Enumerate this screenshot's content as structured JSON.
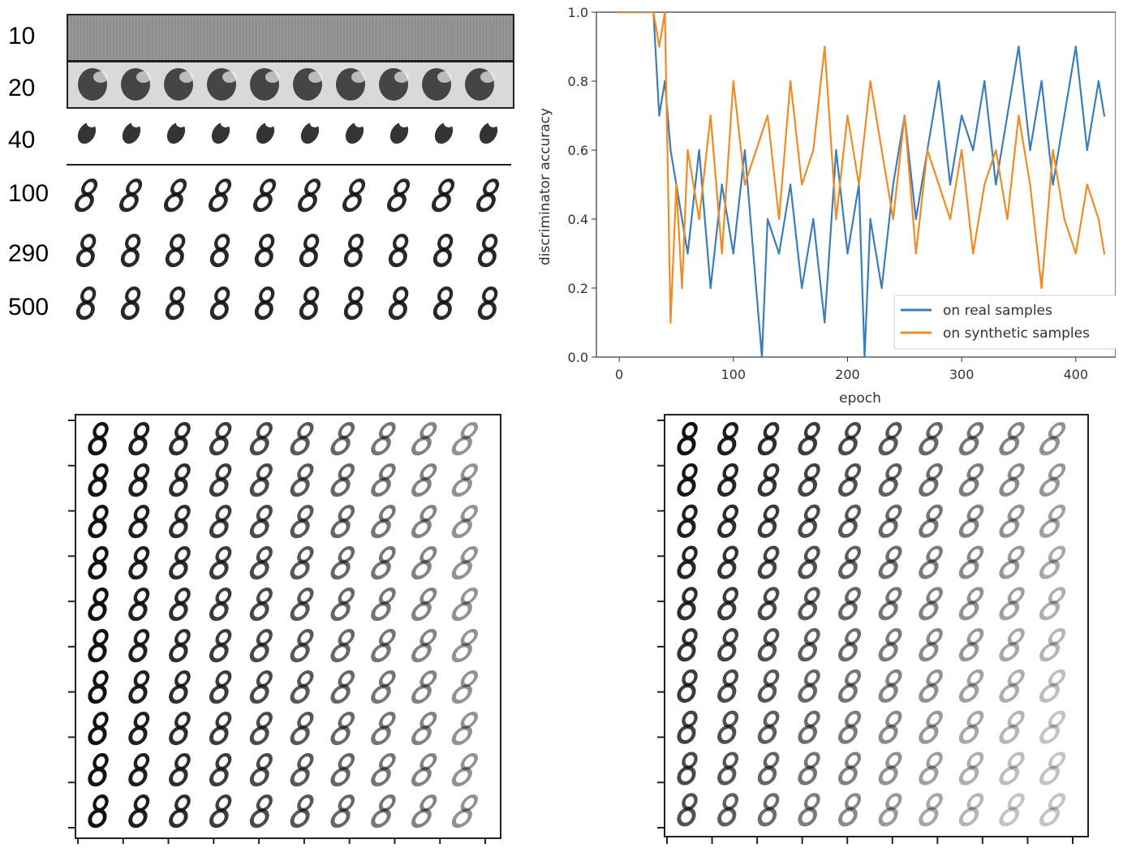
{
  "epoch_samples": {
    "row_labels": [
      "10",
      "20",
      "40",
      "100",
      "290",
      "500"
    ],
    "digits_per_row": 10
  },
  "interpolation_left": {
    "rows": 10,
    "cols": 10,
    "digit": "8"
  },
  "interpolation_right": {
    "rows": 10,
    "cols": 10,
    "digit": "8"
  },
  "chart_data": {
    "type": "line",
    "xlabel": "epoch",
    "ylabel": "discriminator accuracy",
    "xlim": [
      -20,
      435
    ],
    "ylim": [
      0.0,
      1.0
    ],
    "xticks": [
      "0",
      "100",
      "200",
      "300",
      "400"
    ],
    "yticks": [
      "0.0",
      "0.2",
      "0.4",
      "0.6",
      "0.8",
      "1.0"
    ],
    "legend_position": "bottom-right",
    "series": [
      {
        "name": "on real samples",
        "color": "#3b7db9",
        "x": [
          0,
          20,
          30,
          35,
          40,
          45,
          50,
          55,
          60,
          70,
          80,
          90,
          100,
          110,
          120,
          125,
          130,
          140,
          150,
          160,
          170,
          180,
          190,
          200,
          210,
          215,
          220,
          230,
          240,
          250,
          260,
          270,
          280,
          290,
          300,
          310,
          320,
          330,
          340,
          350,
          360,
          370,
          380,
          390,
          400,
          410,
          420,
          425
        ],
        "y": [
          1.0,
          1.0,
          1.0,
          0.7,
          0.8,
          0.6,
          0.5,
          0.4,
          0.3,
          0.6,
          0.2,
          0.5,
          0.3,
          0.6,
          0.2,
          0.0,
          0.4,
          0.3,
          0.5,
          0.2,
          0.4,
          0.1,
          0.6,
          0.3,
          0.5,
          0.0,
          0.4,
          0.2,
          0.5,
          0.7,
          0.4,
          0.6,
          0.8,
          0.5,
          0.7,
          0.6,
          0.8,
          0.5,
          0.7,
          0.9,
          0.6,
          0.8,
          0.5,
          0.7,
          0.9,
          0.6,
          0.8,
          0.7
        ]
      },
      {
        "name": "on synthetic samples",
        "color": "#f28a24",
        "x": [
          0,
          30,
          35,
          40,
          45,
          50,
          55,
          60,
          70,
          80,
          90,
          100,
          110,
          120,
          130,
          140,
          150,
          160,
          170,
          180,
          190,
          200,
          210,
          220,
          230,
          240,
          250,
          260,
          270,
          280,
          290,
          300,
          310,
          320,
          330,
          340,
          350,
          360,
          370,
          380,
          390,
          400,
          410,
          420,
          425
        ],
        "y": [
          1.0,
          1.0,
          0.9,
          1.0,
          0.1,
          0.5,
          0.2,
          0.6,
          0.4,
          0.7,
          0.3,
          0.8,
          0.5,
          0.6,
          0.7,
          0.4,
          0.8,
          0.5,
          0.6,
          0.9,
          0.4,
          0.7,
          0.5,
          0.8,
          0.6,
          0.4,
          0.7,
          0.3,
          0.6,
          0.5,
          0.4,
          0.6,
          0.3,
          0.5,
          0.6,
          0.4,
          0.7,
          0.5,
          0.2,
          0.6,
          0.4,
          0.3,
          0.5,
          0.4,
          0.3
        ]
      }
    ]
  }
}
